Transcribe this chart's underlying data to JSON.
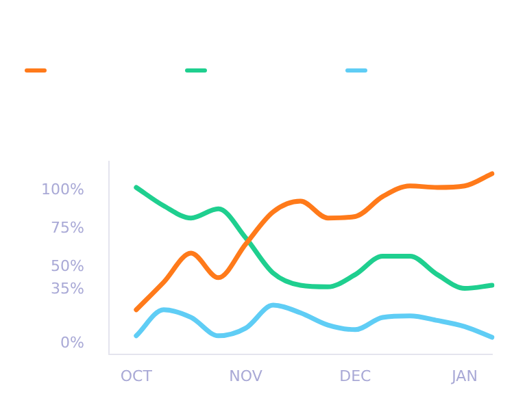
{
  "chart_data": {
    "type": "line",
    "marker": "none",
    "line_style": "solid",
    "grid": false,
    "categories": [
      null,
      "OCT",
      null,
      null,
      null,
      "NOV",
      null,
      null,
      null,
      "DEC",
      null,
      null,
      null,
      "JAN",
      null
    ],
    "ylim": [
      -7,
      119
    ],
    "yticks": [
      {
        "value": 0,
        "label": "0%"
      },
      {
        "value": 35,
        "label": "35%"
      },
      {
        "value": 50,
        "label": "50%"
      },
      {
        "value": 75,
        "label": "75%"
      },
      {
        "value": 100,
        "label": "100%"
      }
    ],
    "series": [
      {
        "color": "#ff7a1a",
        "values": [
          null,
          22,
          40,
          59,
          43,
          65,
          86,
          93,
          82,
          83,
          96,
          103,
          102,
          103,
          111
        ]
      },
      {
        "color": "#1fcf8f",
        "values": [
          null,
          102,
          90,
          82,
          88,
          69,
          46,
          38,
          37,
          45,
          57,
          57,
          45,
          36,
          38
        ]
      },
      {
        "color": "#5fcdf5",
        "values": [
          null,
          5,
          22,
          17,
          5,
          10,
          25,
          20,
          12,
          9,
          17,
          18,
          15,
          11,
          4
        ]
      }
    ]
  }
}
